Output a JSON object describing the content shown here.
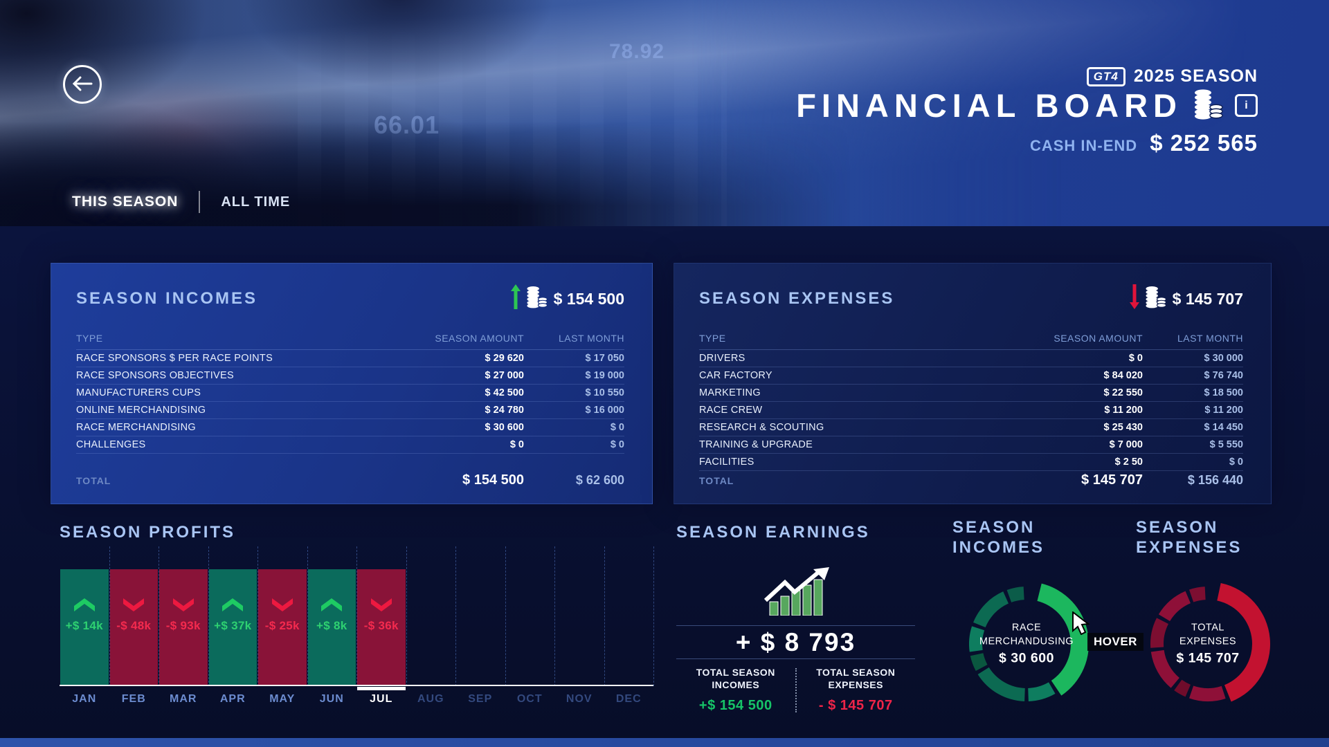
{
  "header": {
    "badge": "GT4",
    "season": "2025 SEASON",
    "title": "FINANCIAL BOARD",
    "info_icon": "i",
    "cash_label": "CASH IN-END",
    "cash_value": "$ 252 565",
    "watermarks": [
      "78.92",
      "66.01"
    ]
  },
  "tabs": [
    {
      "label": "THIS SEASON",
      "active": true
    },
    {
      "label": "ALL TIME",
      "active": false
    }
  ],
  "incomes": {
    "title": "SEASON INCOMES",
    "header_amount": "$ 154 500",
    "columns": [
      "TYPE",
      "SEASON AMOUNT",
      "LAST MONTH"
    ],
    "rows": [
      {
        "type": "RACE SPONSORS $ PER RACE POINTS",
        "season": "$ 29 620",
        "last": "$ 17 050"
      },
      {
        "type": "RACE SPONSORS OBJECTIVES",
        "season": "$ 27 000",
        "last": "$ 19 000"
      },
      {
        "type": "MANUFACTURERS CUPS",
        "season": "$ 42 500",
        "last": "$ 10 550"
      },
      {
        "type": "ONLINE MERCHANDISING",
        "season": "$ 24 780",
        "last": "$ 16 000"
      },
      {
        "type": "RACE MERCHANDISING",
        "season": "$ 30 600",
        "last": "$ 0"
      },
      {
        "type": "CHALLENGES",
        "season": "$ 0",
        "last": "$ 0"
      }
    ],
    "total": {
      "label": "TOTAL",
      "season": "$ 154 500",
      "last": "$ 62 600"
    }
  },
  "expenses": {
    "title": "SEASON EXPENSES",
    "header_amount": "$ 145 707",
    "columns": [
      "TYPE",
      "SEASON AMOUNT",
      "LAST MONTH"
    ],
    "rows": [
      {
        "type": "DRIVERS",
        "season": "$ 0",
        "last": "$ 30 000"
      },
      {
        "type": "CAR FACTORY",
        "season": "$ 84 020",
        "last": "$ 76 740"
      },
      {
        "type": "MARKETING",
        "season": "$ 22 550",
        "last": "$ 18 500"
      },
      {
        "type": "RACE CREW",
        "season": "$ 11 200",
        "last": "$ 11 200"
      },
      {
        "type": "RESEARCH & SCOUTING",
        "season": "$ 25 430",
        "last": "$ 14 450"
      },
      {
        "type": "TRAINING & UPGRADE",
        "season": "$ 7 000",
        "last": "$ 5 550"
      },
      {
        "type": "FACILITIES",
        "season": "$ 2 50",
        "last": "$ 0"
      }
    ],
    "total": {
      "label": "TOTAL",
      "season": "$ 145 707",
      "last": "$ 156 440"
    }
  },
  "profits": {
    "title": "SEASON PROFITS",
    "months": [
      {
        "label": "JAN",
        "value": "+$ 14k",
        "trend": "up",
        "state": "past"
      },
      {
        "label": "FEB",
        "value": "-$ 48k",
        "trend": "down",
        "state": "past"
      },
      {
        "label": "MAR",
        "value": "-$ 93k",
        "trend": "down",
        "state": "past"
      },
      {
        "label": "APR",
        "value": "+$ 37k",
        "trend": "up",
        "state": "past"
      },
      {
        "label": "MAY",
        "value": "-$ 25k",
        "trend": "down",
        "state": "past"
      },
      {
        "label": "JUN",
        "value": "+$ 8k",
        "trend": "up",
        "state": "past"
      },
      {
        "label": "JUL",
        "value": "-$ 36k",
        "trend": "down",
        "state": "current"
      },
      {
        "label": "AUG",
        "value": "",
        "trend": "",
        "state": "future"
      },
      {
        "label": "SEP",
        "value": "",
        "trend": "",
        "state": "future"
      },
      {
        "label": "OCT",
        "value": "",
        "trend": "",
        "state": "future"
      },
      {
        "label": "NOV",
        "value": "",
        "trend": "",
        "state": "future"
      },
      {
        "label": "DEC",
        "value": "",
        "trend": "",
        "state": "future"
      }
    ]
  },
  "earnings": {
    "title": "SEASON EARNINGS",
    "amount": "+ $ 8 793",
    "incomes_label": "TOTAL SEASON INCOMES",
    "incomes_value": "+$ 154 500",
    "expenses_label": "TOTAL SEASON EXPENSES",
    "expenses_value": "- $ 145 707"
  },
  "incomes_donut": {
    "title_line1": "SEASON",
    "title_line2": "INCOMES",
    "center": [
      "RACE",
      "MERCHANDUSING",
      "$ 30 600"
    ],
    "hover_label": "HOVER",
    "segments": [
      {
        "from": 340,
        "to": 357,
        "color": "#0b5c49",
        "highlight": false
      },
      {
        "from": 14,
        "to": 146,
        "color": "#1cb75e",
        "highlight": true
      },
      {
        "from": 150,
        "to": 178,
        "color": "#0e7d5f",
        "highlight": false
      },
      {
        "from": 182,
        "to": 238,
        "color": "#0c6a52",
        "highlight": false
      },
      {
        "from": 242,
        "to": 258,
        "color": "#0a573f",
        "highlight": false
      },
      {
        "from": 262,
        "to": 288,
        "color": "#0e7d5f",
        "highlight": false
      },
      {
        "from": 292,
        "to": 336,
        "color": "#0c6a52",
        "highlight": false
      }
    ]
  },
  "expenses_donut": {
    "title_line1": "SEASON",
    "title_line2": "EXPENSES",
    "center": [
      "TOTAL",
      "EXPENSES",
      "$ 145 707"
    ],
    "segments": [
      {
        "from": 341,
        "to": 357,
        "color": "#7c0e31",
        "highlight": false
      },
      {
        "from": 12,
        "to": 158,
        "color": "#c31230",
        "highlight": true
      },
      {
        "from": 162,
        "to": 199,
        "color": "#8e1038",
        "highlight": false
      },
      {
        "from": 203,
        "to": 216,
        "color": "#6f0c2b",
        "highlight": false
      },
      {
        "from": 220,
        "to": 262,
        "color": "#8e1038",
        "highlight": false
      },
      {
        "from": 266,
        "to": 297,
        "color": "#7c0e31",
        "highlight": false
      },
      {
        "from": 301,
        "to": 337,
        "color": "#8e1038",
        "highlight": false
      }
    ]
  },
  "colors": {
    "up_arrow_green": "#2dc653",
    "down_arrow_red": "#e0143a",
    "profit_bar_green": "#0b6b5c",
    "loss_bar_red": "#891338",
    "chevron_green": "#1ecb63",
    "chevron_red": "#ed1940",
    "profit_text_green": "#2ed171",
    "loss_text_red": "#f42a4e",
    "earnings_green": "#16c468",
    "earnings_red": "#ef2448"
  }
}
